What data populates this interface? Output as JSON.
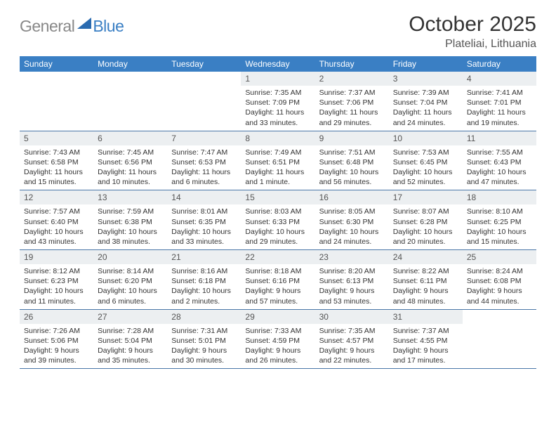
{
  "logo": {
    "general": "General",
    "blue": "Blue",
    "triangle_color": "#2a6bb0"
  },
  "title": "October 2025",
  "location": "Plateliai, Lithuania",
  "header_bg": "#3a7fc4",
  "header_fg": "#ffffff",
  "daynum_bg": "#eceff1",
  "row_border": "#4a77a8",
  "weekdays": [
    "Sunday",
    "Monday",
    "Tuesday",
    "Wednesday",
    "Thursday",
    "Friday",
    "Saturday"
  ],
  "weeks": [
    [
      {
        "n": "",
        "sr": "",
        "ss": "",
        "dl": ""
      },
      {
        "n": "",
        "sr": "",
        "ss": "",
        "dl": ""
      },
      {
        "n": "",
        "sr": "",
        "ss": "",
        "dl": ""
      },
      {
        "n": "1",
        "sr": "Sunrise: 7:35 AM",
        "ss": "Sunset: 7:09 PM",
        "dl": "Daylight: 11 hours and 33 minutes."
      },
      {
        "n": "2",
        "sr": "Sunrise: 7:37 AM",
        "ss": "Sunset: 7:06 PM",
        "dl": "Daylight: 11 hours and 29 minutes."
      },
      {
        "n": "3",
        "sr": "Sunrise: 7:39 AM",
        "ss": "Sunset: 7:04 PM",
        "dl": "Daylight: 11 hours and 24 minutes."
      },
      {
        "n": "4",
        "sr": "Sunrise: 7:41 AM",
        "ss": "Sunset: 7:01 PM",
        "dl": "Daylight: 11 hours and 19 minutes."
      }
    ],
    [
      {
        "n": "5",
        "sr": "Sunrise: 7:43 AM",
        "ss": "Sunset: 6:58 PM",
        "dl": "Daylight: 11 hours and 15 minutes."
      },
      {
        "n": "6",
        "sr": "Sunrise: 7:45 AM",
        "ss": "Sunset: 6:56 PM",
        "dl": "Daylight: 11 hours and 10 minutes."
      },
      {
        "n": "7",
        "sr": "Sunrise: 7:47 AM",
        "ss": "Sunset: 6:53 PM",
        "dl": "Daylight: 11 hours and 6 minutes."
      },
      {
        "n": "8",
        "sr": "Sunrise: 7:49 AM",
        "ss": "Sunset: 6:51 PM",
        "dl": "Daylight: 11 hours and 1 minute."
      },
      {
        "n": "9",
        "sr": "Sunrise: 7:51 AM",
        "ss": "Sunset: 6:48 PM",
        "dl": "Daylight: 10 hours and 56 minutes."
      },
      {
        "n": "10",
        "sr": "Sunrise: 7:53 AM",
        "ss": "Sunset: 6:45 PM",
        "dl": "Daylight: 10 hours and 52 minutes."
      },
      {
        "n": "11",
        "sr": "Sunrise: 7:55 AM",
        "ss": "Sunset: 6:43 PM",
        "dl": "Daylight: 10 hours and 47 minutes."
      }
    ],
    [
      {
        "n": "12",
        "sr": "Sunrise: 7:57 AM",
        "ss": "Sunset: 6:40 PM",
        "dl": "Daylight: 10 hours and 43 minutes."
      },
      {
        "n": "13",
        "sr": "Sunrise: 7:59 AM",
        "ss": "Sunset: 6:38 PM",
        "dl": "Daylight: 10 hours and 38 minutes."
      },
      {
        "n": "14",
        "sr": "Sunrise: 8:01 AM",
        "ss": "Sunset: 6:35 PM",
        "dl": "Daylight: 10 hours and 33 minutes."
      },
      {
        "n": "15",
        "sr": "Sunrise: 8:03 AM",
        "ss": "Sunset: 6:33 PM",
        "dl": "Daylight: 10 hours and 29 minutes."
      },
      {
        "n": "16",
        "sr": "Sunrise: 8:05 AM",
        "ss": "Sunset: 6:30 PM",
        "dl": "Daylight: 10 hours and 24 minutes."
      },
      {
        "n": "17",
        "sr": "Sunrise: 8:07 AM",
        "ss": "Sunset: 6:28 PM",
        "dl": "Daylight: 10 hours and 20 minutes."
      },
      {
        "n": "18",
        "sr": "Sunrise: 8:10 AM",
        "ss": "Sunset: 6:25 PM",
        "dl": "Daylight: 10 hours and 15 minutes."
      }
    ],
    [
      {
        "n": "19",
        "sr": "Sunrise: 8:12 AM",
        "ss": "Sunset: 6:23 PM",
        "dl": "Daylight: 10 hours and 11 minutes."
      },
      {
        "n": "20",
        "sr": "Sunrise: 8:14 AM",
        "ss": "Sunset: 6:20 PM",
        "dl": "Daylight: 10 hours and 6 minutes."
      },
      {
        "n": "21",
        "sr": "Sunrise: 8:16 AM",
        "ss": "Sunset: 6:18 PM",
        "dl": "Daylight: 10 hours and 2 minutes."
      },
      {
        "n": "22",
        "sr": "Sunrise: 8:18 AM",
        "ss": "Sunset: 6:16 PM",
        "dl": "Daylight: 9 hours and 57 minutes."
      },
      {
        "n": "23",
        "sr": "Sunrise: 8:20 AM",
        "ss": "Sunset: 6:13 PM",
        "dl": "Daylight: 9 hours and 53 minutes."
      },
      {
        "n": "24",
        "sr": "Sunrise: 8:22 AM",
        "ss": "Sunset: 6:11 PM",
        "dl": "Daylight: 9 hours and 48 minutes."
      },
      {
        "n": "25",
        "sr": "Sunrise: 8:24 AM",
        "ss": "Sunset: 6:08 PM",
        "dl": "Daylight: 9 hours and 44 minutes."
      }
    ],
    [
      {
        "n": "26",
        "sr": "Sunrise: 7:26 AM",
        "ss": "Sunset: 5:06 PM",
        "dl": "Daylight: 9 hours and 39 minutes."
      },
      {
        "n": "27",
        "sr": "Sunrise: 7:28 AM",
        "ss": "Sunset: 5:04 PM",
        "dl": "Daylight: 9 hours and 35 minutes."
      },
      {
        "n": "28",
        "sr": "Sunrise: 7:31 AM",
        "ss": "Sunset: 5:01 PM",
        "dl": "Daylight: 9 hours and 30 minutes."
      },
      {
        "n": "29",
        "sr": "Sunrise: 7:33 AM",
        "ss": "Sunset: 4:59 PM",
        "dl": "Daylight: 9 hours and 26 minutes."
      },
      {
        "n": "30",
        "sr": "Sunrise: 7:35 AM",
        "ss": "Sunset: 4:57 PM",
        "dl": "Daylight: 9 hours and 22 minutes."
      },
      {
        "n": "31",
        "sr": "Sunrise: 7:37 AM",
        "ss": "Sunset: 4:55 PM",
        "dl": "Daylight: 9 hours and 17 minutes."
      },
      {
        "n": "",
        "sr": "",
        "ss": "",
        "dl": ""
      }
    ]
  ]
}
